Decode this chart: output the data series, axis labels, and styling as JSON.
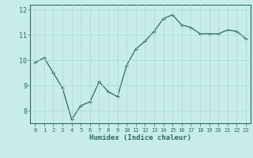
{
  "x": [
    0,
    1,
    2,
    3,
    4,
    5,
    6,
    7,
    8,
    9,
    10,
    11,
    12,
    13,
    14,
    15,
    16,
    17,
    18,
    19,
    20,
    21,
    22,
    23
  ],
  "y": [
    9.9,
    10.1,
    9.5,
    8.9,
    7.65,
    8.2,
    8.35,
    9.15,
    8.75,
    8.55,
    9.8,
    10.45,
    10.75,
    11.15,
    11.65,
    11.8,
    11.4,
    11.3,
    11.05,
    11.05,
    11.05,
    11.2,
    11.15,
    10.85
  ],
  "xlabel": "Humidex (Indice chaleur)",
  "ylim": [
    7.5,
    12.2
  ],
  "xlim": [
    -0.5,
    23.5
  ],
  "yticks": [
    8,
    9,
    10,
    11,
    12
  ],
  "xticks": [
    0,
    1,
    2,
    3,
    4,
    5,
    6,
    7,
    8,
    9,
    10,
    11,
    12,
    13,
    14,
    15,
    16,
    17,
    18,
    19,
    20,
    21,
    22,
    23
  ],
  "bg_color": "#c8ede8",
  "line_color": "#2a6b5e",
  "grid_color": "#a8d8d0",
  "tick_label_color": "#2a6b5e",
  "xlabel_color": "#2a6b5e",
  "fig_width": 3.2,
  "fig_height": 2.0,
  "dpi": 100
}
